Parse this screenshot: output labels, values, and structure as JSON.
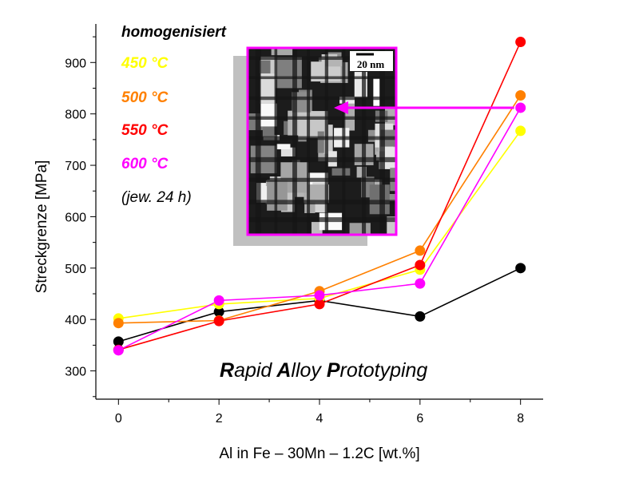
{
  "chart_data": {
    "type": "line",
    "xlabel": "Al in Fe – 30Mn – 1.2C [wt.%]",
    "ylabel": "Streckgrenze [MPa]",
    "xlim": [
      -0.45,
      8.45
    ],
    "ylim": [
      245,
      975
    ],
    "x_ticks": [
      0,
      2,
      4,
      6,
      8
    ],
    "y_ticks": [
      300,
      400,
      500,
      600,
      700,
      800,
      900
    ],
    "legend_heading": "homogenisiert",
    "legend_note": "(jew. 24 h)",
    "annotation": "Rapid Alloy Prototyping",
    "inset": {
      "scale_label": "20 nm",
      "arrow_target_series": "600 °C",
      "arrow_target_x": 8
    },
    "series": [
      {
        "name": "homogenisiert",
        "color": "#000000",
        "x": [
          0,
          2,
          4,
          6,
          8
        ],
        "values": [
          357,
          415,
          437,
          406,
          500
        ]
      },
      {
        "name": "450 °C",
        "color": "#ffff00",
        "x": [
          0,
          2,
          4,
          6,
          8
        ],
        "values": [
          402,
          430,
          441,
          497,
          767
        ]
      },
      {
        "name": "500 °C",
        "color": "#ff8000",
        "x": [
          0,
          2,
          4,
          6,
          8
        ],
        "values": [
          393,
          398,
          455,
          534,
          836
        ]
      },
      {
        "name": "550 °C",
        "color": "#ff0000",
        "x": [
          0,
          2,
          4,
          6,
          8
        ],
        "values": [
          341,
          397,
          430,
          506,
          940
        ]
      },
      {
        "name": "600 °C",
        "color": "#ff00ff",
        "x": [
          0,
          2,
          4,
          6,
          8
        ],
        "values": [
          340,
          437,
          447,
          470,
          812
        ]
      }
    ]
  }
}
